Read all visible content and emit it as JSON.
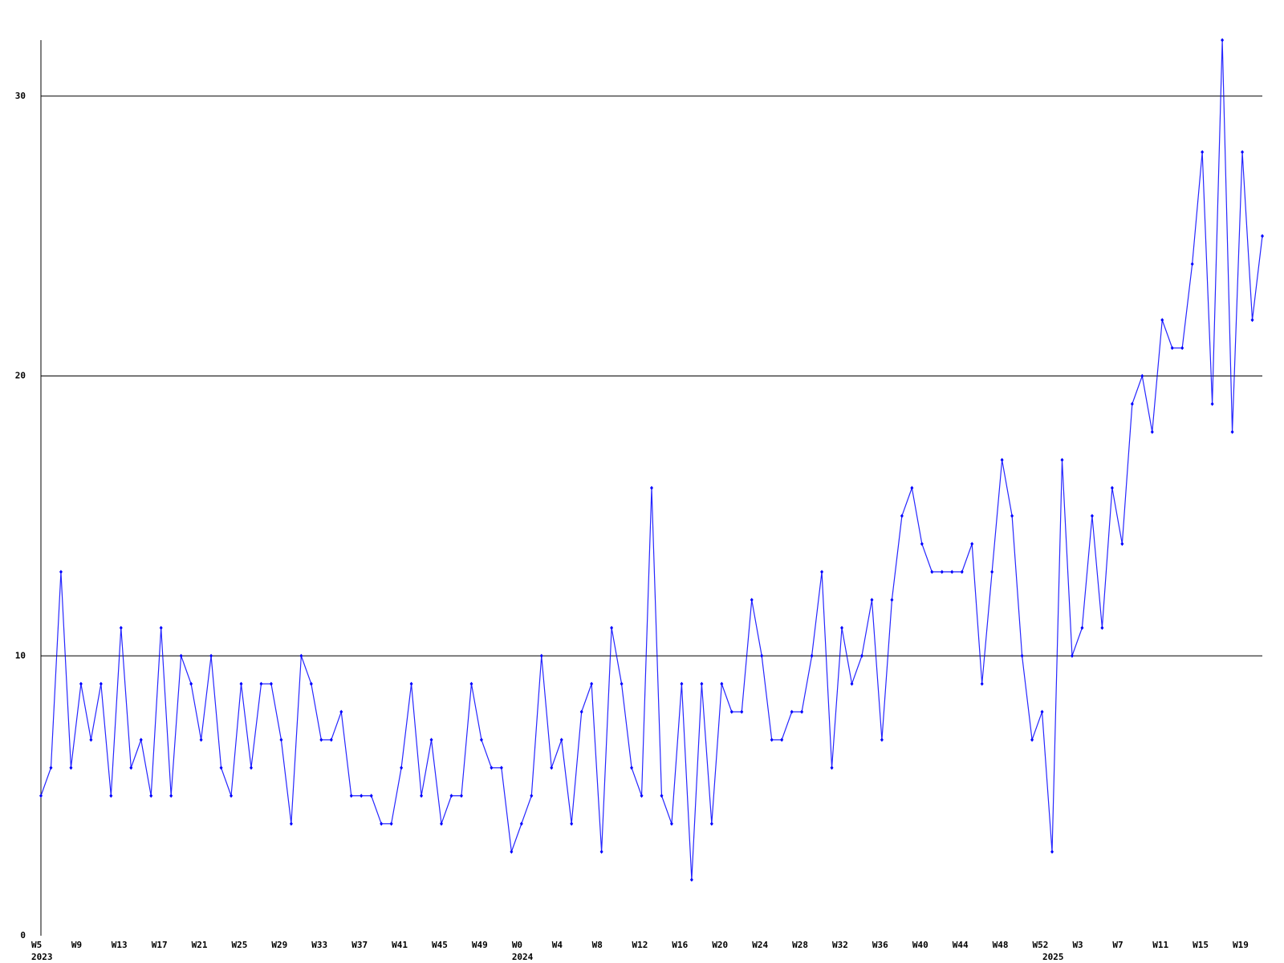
{
  "chart_data": {
    "type": "line",
    "categories": [
      "W5",
      null,
      null,
      null,
      "W9",
      null,
      null,
      null,
      "W13",
      null,
      null,
      null,
      "W17",
      null,
      null,
      null,
      "W21",
      null,
      null,
      null,
      "W25",
      null,
      null,
      null,
      "W29",
      null,
      null,
      null,
      "W33",
      null,
      null,
      null,
      "W37",
      null,
      null,
      null,
      "W41",
      null,
      null,
      null,
      "W45",
      null,
      null,
      null,
      "W49",
      null,
      null,
      null,
      "W0",
      null,
      null,
      null,
      "W4",
      null,
      null,
      null,
      "W8",
      null,
      null,
      null,
      "W12",
      null,
      null,
      null,
      "W16",
      null,
      null,
      null,
      "W20",
      null,
      null,
      null,
      "W24",
      null,
      null,
      null,
      "W28",
      null,
      null,
      null,
      "W32",
      null,
      null,
      null,
      "W36",
      null,
      null,
      null,
      "W40",
      null,
      null,
      null,
      "W44",
      null,
      null,
      null,
      "W48",
      null,
      null,
      null,
      "W52",
      null,
      null,
      null,
      "W3",
      null,
      null,
      null,
      "W7",
      null,
      null,
      null,
      "W11",
      null,
      null,
      null,
      "W15",
      null,
      null,
      null,
      "W19",
      null,
      null
    ],
    "years": [
      {
        "label": "2023",
        "start": 0
      },
      {
        "label": "2024",
        "start": 48
      },
      {
        "label": "2025",
        "start": 101
      }
    ],
    "series": [
      {
        "color": "#0000ff",
        "values": [
          5,
          6,
          13,
          6,
          9,
          7,
          9,
          5,
          11,
          6,
          7,
          5,
          11,
          5,
          10,
          9,
          7,
          10,
          6,
          5,
          9,
          6,
          9,
          9,
          7,
          4,
          10,
          9,
          7,
          7,
          8,
          5,
          5,
          5,
          4,
          4,
          6,
          9,
          5,
          7,
          4,
          5,
          5,
          9,
          7,
          6,
          6,
          3,
          4,
          5,
          10,
          6,
          7,
          4,
          8,
          9,
          3,
          11,
          9,
          6,
          5,
          16,
          5,
          4,
          9,
          2,
          9,
          4,
          9,
          8,
          8,
          12,
          10,
          7,
          7,
          8,
          8,
          10,
          13,
          6,
          11,
          9,
          10,
          12,
          7,
          12,
          15,
          16,
          14,
          13,
          13,
          13,
          13,
          14,
          9,
          13,
          17,
          15,
          10,
          7,
          8,
          3,
          17,
          10,
          11,
          15,
          11,
          16,
          14,
          19,
          20,
          18,
          22,
          21,
          21,
          24,
          28,
          19,
          32,
          18,
          28,
          22,
          25
        ]
      }
    ],
    "ylim": [
      0,
      32
    ],
    "yticks": [
      0,
      10,
      20,
      30
    ],
    "grid": true
  }
}
